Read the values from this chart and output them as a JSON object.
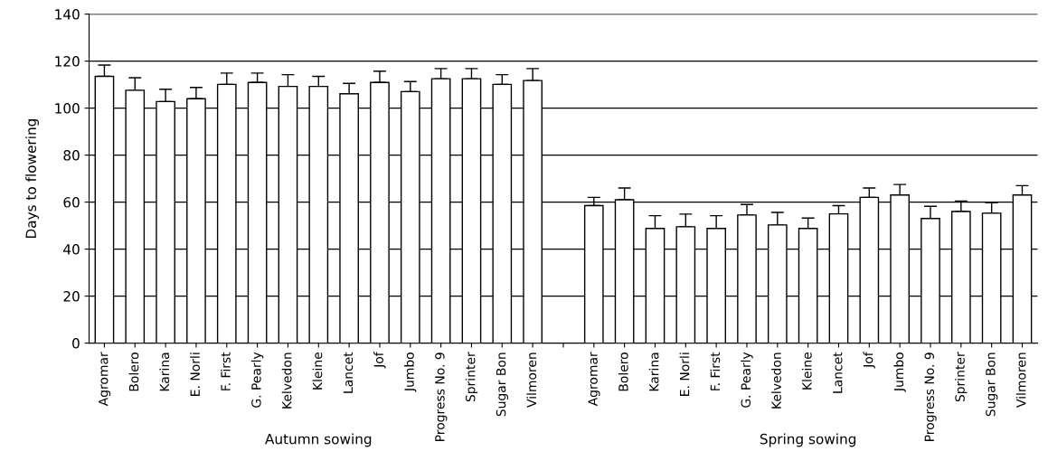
{
  "chart_data": {
    "type": "bar",
    "ylabel": "Days to flowering",
    "categories": [
      "Agromar",
      "Bolero",
      "Karina",
      "E. Norli",
      "F. First",
      "G. Pearly",
      "Kelvedon",
      "Kleine",
      "Lancet",
      "Jof",
      "Jumbo",
      "Progress No. 9",
      "Sprinter",
      "Sugar Bon",
      "Vilmoren",
      null,
      "Agromar",
      "Bolero",
      "Karina",
      "E. Norli",
      "F. First",
      "G. Pearly",
      "Kelvedon",
      "Kleine",
      "Lancet",
      "Jof",
      "Jumbo",
      "Progress No. 9",
      "Sprinter",
      "Sugar Bon",
      "Vilmoren"
    ],
    "values": [
      113.5,
      107.6,
      102.8,
      104,
      110.1,
      110.9,
      109.2,
      109.2,
      106.1,
      110.9,
      107,
      112.5,
      112.5,
      110.1,
      111.7,
      null,
      58.5,
      61,
      48.8,
      49.5,
      48.8,
      54.5,
      50.3,
      48.8,
      55,
      62,
      63,
      53,
      56,
      55.3,
      63
    ],
    "errors": [
      4.8,
      5.3,
      5.2,
      4.8,
      4.8,
      4,
      5,
      4.3,
      4.4,
      4.8,
      4.3,
      4.3,
      4.3,
      4.1,
      5.1,
      null,
      3.5,
      5,
      5.4,
      5.4,
      5.4,
      4.5,
      5.3,
      4.4,
      3.5,
      4,
      4.5,
      5.2,
      4.4,
      4.4,
      4
    ],
    "color": "#ffffff",
    "ylim": [
      0,
      140
    ],
    "yticks": [
      0,
      20,
      40,
      60,
      80,
      100,
      120,
      140
    ],
    "grid": "y",
    "annotations": [
      "Autumn sowing",
      "Spring sowing"
    ]
  }
}
